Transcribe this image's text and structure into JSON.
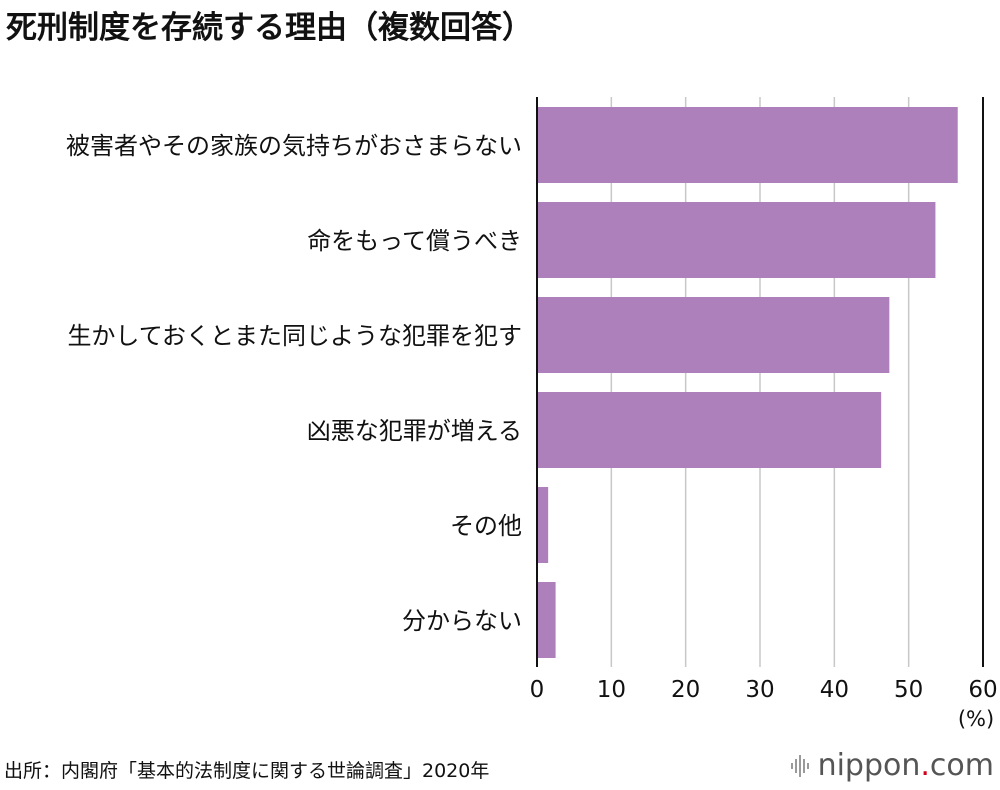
{
  "title": "死刑制度を存続する理由（複数回答）",
  "source": "出所：内閣府「基本的法制度に関する世論調査」2020年",
  "brand": {
    "name": "nippon",
    "dot": ".",
    "tld": "com",
    "icon": "waveform-icon"
  },
  "colors": {
    "bar": "#ad7fbb",
    "grid": "#c8c8c8",
    "axis": "#111111",
    "brand_dot": "#d0021b"
  },
  "chart_data": {
    "type": "bar",
    "orientation": "horizontal",
    "categories": [
      "被害者やその家族の気持ちがおさまらない",
      "命をもって償うべき",
      "生かしておくとまた同じような犯罪を犯す",
      "凶悪な犯罪が増える",
      "その他",
      "分からない"
    ],
    "values": [
      56.6,
      53.6,
      47.4,
      46.3,
      1.5,
      2.5
    ],
    "xlim": [
      0,
      60
    ],
    "ticks": [
      0,
      10,
      20,
      30,
      40,
      50,
      60
    ],
    "unit": "(%)",
    "grid": true
  }
}
